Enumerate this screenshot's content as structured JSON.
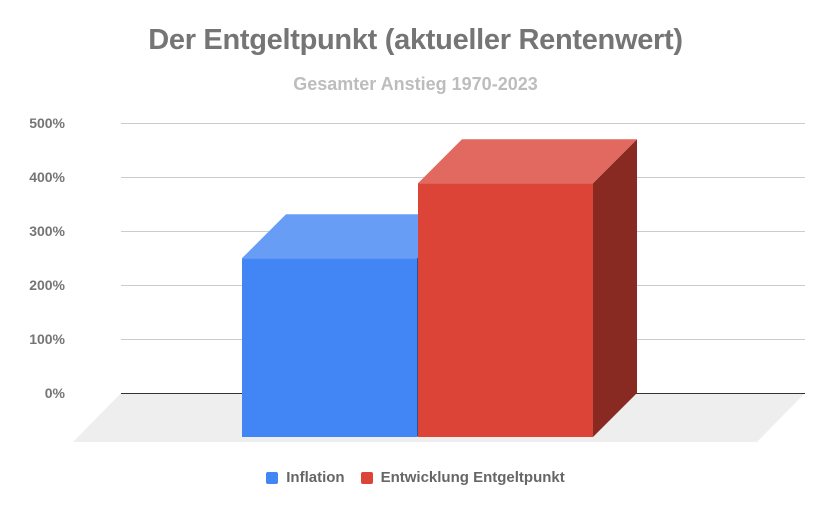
{
  "chart_data": {
    "type": "bar",
    "variant": "3d-column",
    "title": "Der Entgeltpunkt (aktueller Rentenwert)",
    "subtitle": "Gesamter Anstieg 1970-2023",
    "xlabel": "",
    "ylabel": "",
    "ylim": [
      0,
      500
    ],
    "yticks": [
      "500%",
      "400%",
      "300%",
      "200%",
      "100%",
      "0%"
    ],
    "grid": true,
    "legend_position": "bottom",
    "categories": [
      ""
    ],
    "series": [
      {
        "name": "Inflation",
        "values": [
          331
        ],
        "color": "#4285f4"
      },
      {
        "name": "Entwicklung Entgeltpunkt",
        "values": [
          470
        ],
        "color": "#db4437"
      }
    ]
  },
  "legend": {
    "items": [
      {
        "label": "Inflation",
        "color": "#4285f4"
      },
      {
        "label": "Entwicklung Entgeltpunkt",
        "color": "#db4437"
      }
    ]
  }
}
